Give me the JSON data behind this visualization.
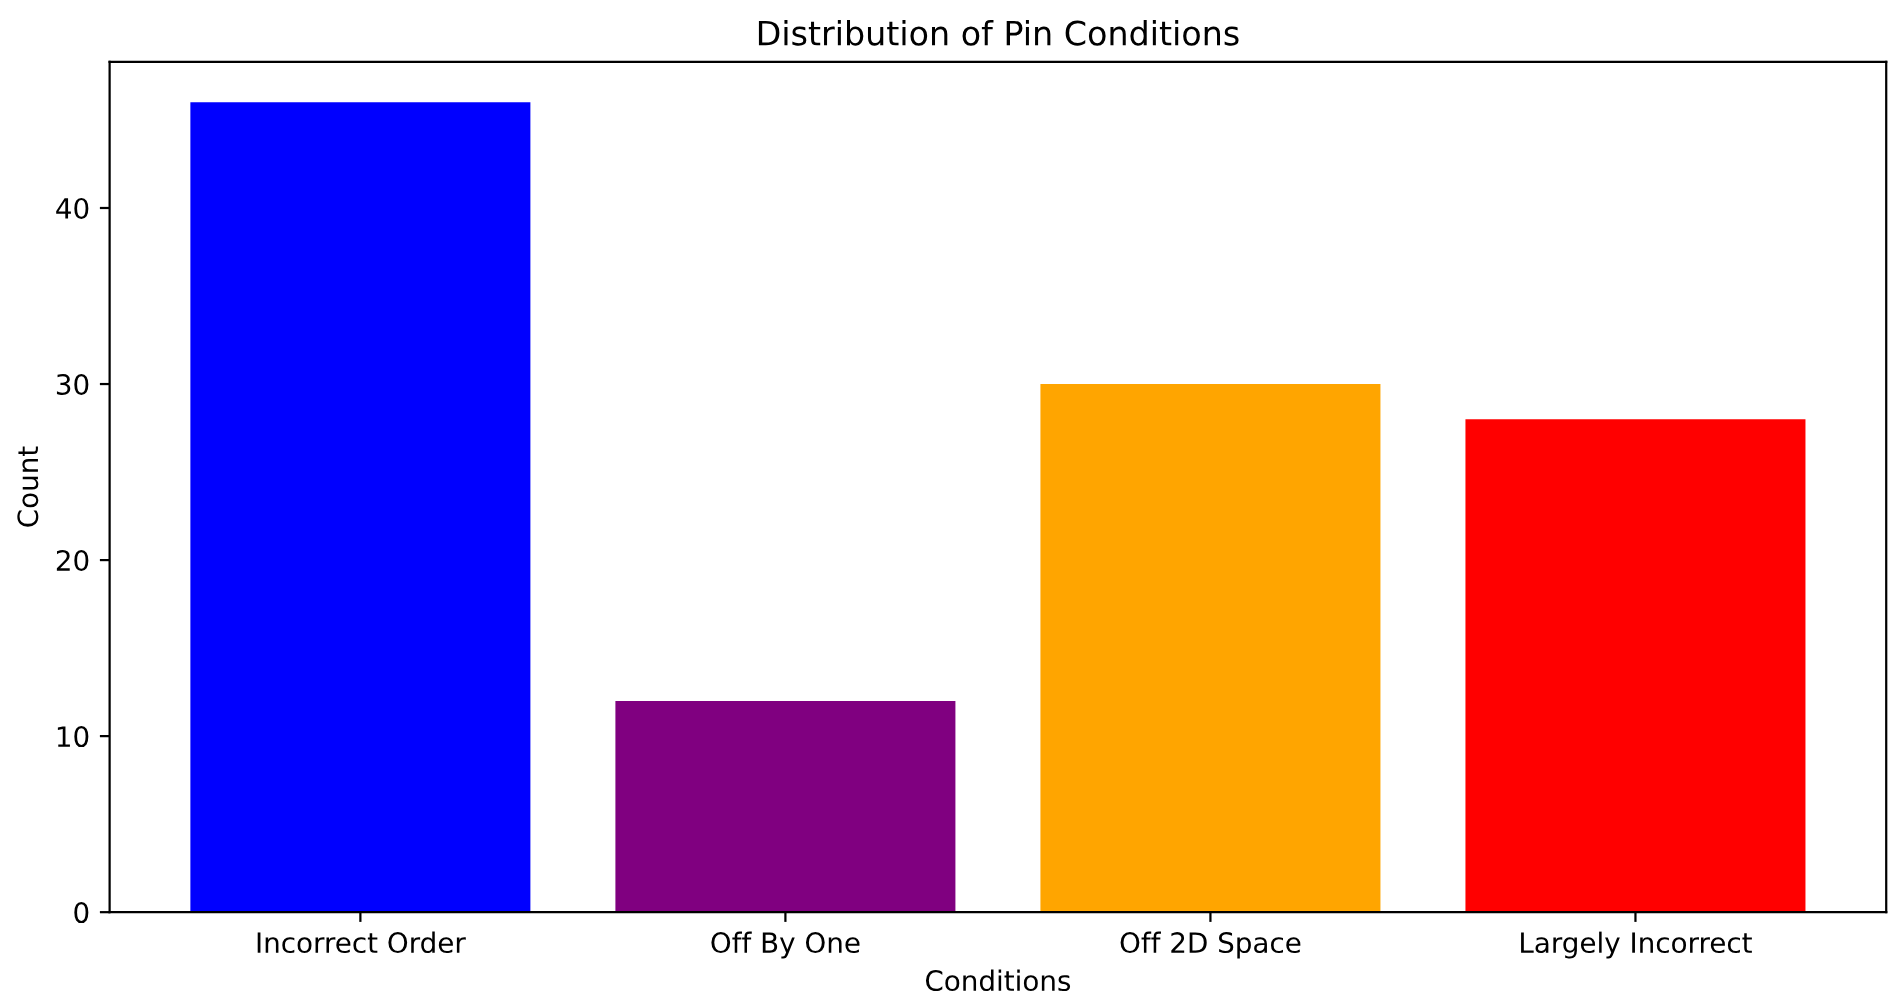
{
  "chart_data": {
    "type": "bar",
    "title": "Distribution of Pin Conditions",
    "xlabel": "Conditions",
    "ylabel": "Count",
    "categories": [
      "Incorrect Order",
      "Off By One",
      "Off 2D Space",
      "Largely Incorrect"
    ],
    "values": [
      46,
      12,
      30,
      28
    ],
    "colors": [
      "#0000ff",
      "#800080",
      "#ffa500",
      "#ff0000"
    ],
    "ylim": [
      0,
      48.3
    ],
    "yticks": [
      0,
      10,
      20,
      30,
      40
    ],
    "grid": false,
    "legend": false
  }
}
